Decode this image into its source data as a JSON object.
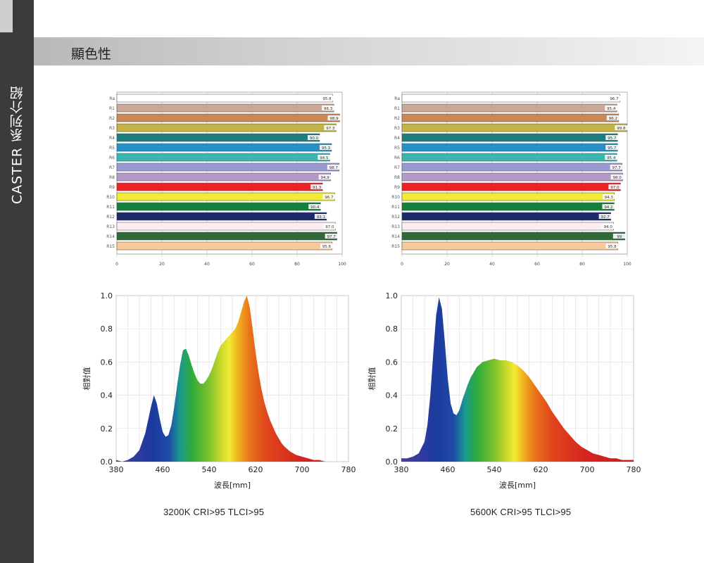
{
  "sidebar": {
    "label": "CASTER 系列介紹"
  },
  "header": {
    "title": "顯色性"
  },
  "cri_charts": [
    {
      "categories": [
        "Ra",
        "R1",
        "R2",
        "R3",
        "R4",
        "R5",
        "R6",
        "R7",
        "R8",
        "R9",
        "R10",
        "R11",
        "R12",
        "R13",
        "R14",
        "R15"
      ],
      "values": [
        95.8,
        96.3,
        98.9,
        97.3,
        90.0,
        95.3,
        94.5,
        98.7,
        94.9,
        91.3,
        96.7,
        90.4,
        93.1,
        97.0,
        97.7,
        95.6
      ],
      "value_labels": [
        "95.8",
        "96.3",
        "98.9",
        "97.3",
        "90.0",
        "95.3",
        "94.5",
        "98.7",
        "94.9",
        "91.3",
        "96.7",
        "90.4",
        "93.1",
        "97.0",
        "97.7",
        "95.6"
      ],
      "xticks": [
        "0",
        "20",
        "40",
        "60",
        "80",
        "100"
      ],
      "xlim": [
        0,
        100
      ]
    },
    {
      "categories": [
        "Ra",
        "R1",
        "R2",
        "R3",
        "R4",
        "R5",
        "R6",
        "R7",
        "R8",
        "R9",
        "R10",
        "R11",
        "R12",
        "R13",
        "R14",
        "R15"
      ],
      "values": [
        96.7,
        95.4,
        96.2,
        99.8,
        95.7,
        95.7,
        95.4,
        97.7,
        98.0,
        97.0,
        94.3,
        94.2,
        92.7,
        94.0,
        99.0,
        95.8
      ],
      "value_labels": [
        "96.7",
        "95.4",
        "96.2",
        "99.8",
        "95.7",
        "95.7",
        "95.4",
        "97.7",
        "98.0",
        "97.0",
        "94.3",
        "94.2",
        "92.7",
        "94.0",
        "99",
        "95.8"
      ],
      "xticks": [
        "0",
        "20",
        "40",
        "60",
        "80",
        "100"
      ],
      "xlim": [
        0,
        100
      ]
    }
  ],
  "bar_colors": [
    "#ffffff",
    "#c9a89a",
    "#c98856",
    "#c2b545",
    "#1f7e7c",
    "#2591c8",
    "#3ab6b0",
    "#9a9ad2",
    "#b39bc9",
    "#ec2225",
    "#f2ea35",
    "#14803b",
    "#1c2a6a",
    "#fbeef2",
    "#2f6b3a",
    "#f8c99c"
  ],
  "spectrum_charts": [
    {
      "caption": "3200K  CRI>95  TLCI>95",
      "xlabel": "波長[mm]",
      "ylabel": "相對值",
      "xticks": [
        "380",
        "460",
        "540",
        "620",
        "700",
        "780"
      ],
      "yticks": [
        "0.0",
        "0.2",
        "0.4",
        "0.6",
        "0.8",
        "1.0"
      ],
      "xlim": [
        380,
        780
      ],
      "ylim": [
        0,
        1
      ],
      "x": [
        380,
        390,
        400,
        410,
        420,
        430,
        440,
        445,
        450,
        455,
        460,
        465,
        470,
        475,
        480,
        485,
        490,
        495,
        500,
        505,
        510,
        515,
        520,
        525,
        530,
        535,
        540,
        545,
        550,
        555,
        560,
        565,
        570,
        575,
        580,
        585,
        590,
        595,
        600,
        605,
        610,
        615,
        620,
        625,
        630,
        635,
        640,
        645,
        650,
        655,
        660,
        665,
        670,
        680,
        690,
        700,
        710,
        720,
        730,
        740,
        750,
        760,
        770
      ],
      "y": [
        0.01,
        0.0,
        0.01,
        0.03,
        0.07,
        0.17,
        0.33,
        0.4,
        0.35,
        0.26,
        0.18,
        0.15,
        0.16,
        0.22,
        0.33,
        0.46,
        0.58,
        0.67,
        0.68,
        0.64,
        0.58,
        0.53,
        0.49,
        0.47,
        0.47,
        0.49,
        0.52,
        0.56,
        0.61,
        0.66,
        0.7,
        0.72,
        0.74,
        0.76,
        0.78,
        0.8,
        0.84,
        0.9,
        0.96,
        1.0,
        0.93,
        0.8,
        0.66,
        0.54,
        0.44,
        0.36,
        0.3,
        0.25,
        0.21,
        0.17,
        0.14,
        0.11,
        0.09,
        0.06,
        0.04,
        0.03,
        0.02,
        0.01,
        0.01,
        0.0,
        0.0,
        0.0,
        0.0
      ]
    },
    {
      "caption": "5600K  CRI>95  TLCI>95",
      "xlabel": "波長[mm]",
      "ylabel": "相對值",
      "xticks": [
        "380",
        "460",
        "540",
        "620",
        "700",
        "780"
      ],
      "yticks": [
        "0.0",
        "0.2",
        "0.4",
        "0.6",
        "0.8",
        "1.0"
      ],
      "xlim": [
        380,
        780
      ],
      "ylim": [
        0,
        1
      ],
      "x": [
        380,
        390,
        400,
        410,
        420,
        425,
        430,
        435,
        440,
        445,
        450,
        455,
        460,
        465,
        470,
        475,
        480,
        485,
        490,
        495,
        500,
        510,
        520,
        530,
        540,
        550,
        560,
        570,
        580,
        590,
        600,
        610,
        620,
        630,
        640,
        650,
        660,
        670,
        680,
        690,
        700,
        710,
        720,
        730,
        740,
        750,
        760,
        770,
        780
      ],
      "y": [
        0.02,
        0.02,
        0.03,
        0.05,
        0.12,
        0.22,
        0.4,
        0.65,
        0.88,
        0.99,
        0.92,
        0.72,
        0.5,
        0.35,
        0.29,
        0.28,
        0.31,
        0.37,
        0.42,
        0.47,
        0.51,
        0.57,
        0.6,
        0.61,
        0.62,
        0.61,
        0.61,
        0.6,
        0.58,
        0.55,
        0.51,
        0.46,
        0.41,
        0.36,
        0.3,
        0.25,
        0.2,
        0.16,
        0.12,
        0.09,
        0.07,
        0.05,
        0.04,
        0.03,
        0.02,
        0.02,
        0.01,
        0.01,
        0.01
      ]
    }
  ]
}
